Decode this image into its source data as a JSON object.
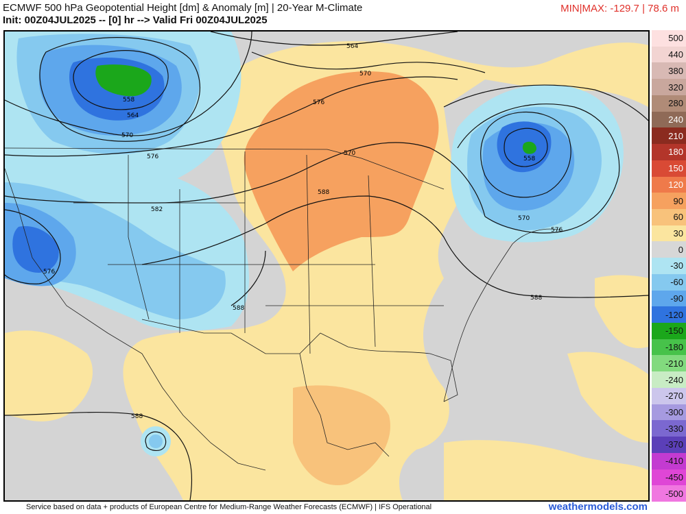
{
  "header": {
    "title": "ECMWF 500 hPa Geopotential Height [dm] & Anomaly [m] | 20-Year M-Climate",
    "subtitle": "Init: 00Z04JUL2025 -- [0] hr --> Valid Fri 00Z04JUL2025",
    "minmax": "MIN|MAX: -129.7 | 78.6 m"
  },
  "footer": {
    "credit": "Service based on data + products of European Centre for Medium-Range Weather Forecasts (ECMWF) | IFS Operational",
    "brand": "weathermodels.com"
  },
  "contour_labels": [
    "564",
    "570",
    "576",
    "558",
    "564",
    "570",
    "576",
    "582",
    "576",
    "570",
    "582",
    "588",
    "558",
    "570",
    "576",
    "588",
    "588",
    "588"
  ],
  "legend": {
    "values": [
      "500",
      "440",
      "380",
      "320",
      "280",
      "240",
      "210",
      "180",
      "150",
      "120",
      "90",
      "60",
      "30",
      "0",
      "-30",
      "-60",
      "-90",
      "-120",
      "-150",
      "-180",
      "-210",
      "-240",
      "-270",
      "-300",
      "-330",
      "-370",
      "-410",
      "-450",
      "-500"
    ],
    "colors": [
      "#fde0e0",
      "#f2d4d2",
      "#d8b9b4",
      "#c9a79d",
      "#b08b77",
      "#8f6a57",
      "#8b2b1f",
      "#b3352a",
      "#d94a35",
      "#ef7a4a",
      "#f6a15f",
      "#f8c27b",
      "#fbe59f",
      "#d7d7d7",
      "#aee4f2",
      "#85c9ef",
      "#5ea7ec",
      "#2f73df",
      "#1ba71b",
      "#47c24a",
      "#82da7e",
      "#c8ecc4",
      "#ccc6ec",
      "#a69ae0",
      "#7b68d0",
      "#5b3fb8",
      "#c33bd1",
      "#df46d6",
      "#f077e0"
    ]
  },
  "colors": {
    "ocean_neutral": "#d4d4d4",
    "warm_anomaly": "#fbe59f",
    "strong_warm": "#f6a15f",
    "cold_anomaly": "#aee4f2",
    "strong_cold": "#2f73df",
    "extreme_cold": "#1ba71b"
  }
}
